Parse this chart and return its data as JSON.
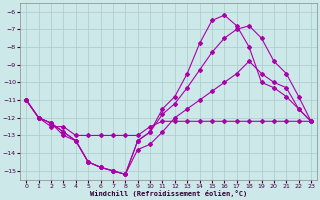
{
  "xlabel": "Windchill (Refroidissement éolien,°C)",
  "background_color": "#cce8e8",
  "grid_color": "#aacccc",
  "line_color": "#aa00aa",
  "xlim_min": -0.5,
  "xlim_max": 23.5,
  "ylim_min": -15.5,
  "ylim_max": -5.5,
  "yticks": [
    -15,
    -14,
    -13,
    -12,
    -11,
    -10,
    -9,
    -8,
    -7,
    -6
  ],
  "xticks": [
    0,
    1,
    2,
    3,
    4,
    5,
    6,
    7,
    8,
    9,
    10,
    11,
    12,
    13,
    14,
    15,
    16,
    17,
    18,
    19,
    20,
    21,
    22,
    23
  ],
  "series": [
    {
      "x": [
        0,
        1,
        2,
        3,
        4,
        5,
        6,
        7,
        8,
        9,
        10,
        11,
        12,
        13,
        14,
        15,
        16,
        17,
        18,
        19,
        20,
        21,
        22,
        23
      ],
      "y": [
        -11.0,
        -12.0,
        -12.5,
        -12.5,
        -13.0,
        -13.0,
        -13.0,
        -13.0,
        -13.0,
        -13.0,
        -12.5,
        -12.2,
        -12.2,
        -12.2,
        -12.2,
        -12.2,
        -12.2,
        -12.2,
        -12.2,
        -12.2,
        -12.2,
        -12.2,
        -12.2,
        -12.2
      ]
    },
    {
      "x": [
        0,
        1,
        2,
        3,
        4,
        5,
        6,
        7,
        8,
        9,
        10,
        11,
        12,
        13,
        14,
        15,
        16,
        17,
        18,
        19,
        20,
        21,
        22,
        23
      ],
      "y": [
        -11.0,
        -12.0,
        -12.3,
        -13.0,
        -13.3,
        -14.5,
        -14.8,
        -15.0,
        -15.2,
        -13.8,
        -13.5,
        -12.8,
        -12.0,
        -11.5,
        -11.0,
        -10.5,
        -10.0,
        -9.5,
        -8.8,
        -9.5,
        -10.0,
        -10.3,
        -11.5,
        -12.2
      ]
    },
    {
      "x": [
        0,
        1,
        2,
        3,
        4,
        5,
        6,
        7,
        8,
        9,
        10,
        11,
        12,
        13,
        14,
        15,
        16,
        17,
        18,
        19,
        20,
        21,
        22,
        23
      ],
      "y": [
        -11.0,
        -12.0,
        -12.3,
        -12.8,
        -13.3,
        -14.5,
        -14.8,
        -15.0,
        -15.2,
        -13.3,
        -12.8,
        -11.8,
        -11.2,
        -10.3,
        -9.3,
        -8.3,
        -7.5,
        -7.0,
        -6.8,
        -7.5,
        -8.8,
        -9.5,
        -10.8,
        -12.2
      ]
    },
    {
      "x": [
        0,
        1,
        2,
        3,
        4,
        5,
        6,
        7,
        8,
        9,
        10,
        11,
        12,
        13,
        14,
        15,
        16,
        17,
        18,
        19,
        20,
        21,
        22,
        23
      ],
      "y": [
        -11.0,
        -12.0,
        -12.3,
        -12.8,
        -13.3,
        -14.5,
        -14.8,
        -15.0,
        -15.2,
        -13.3,
        -12.8,
        -11.5,
        -10.8,
        -9.5,
        -7.8,
        -6.5,
        -6.2,
        -6.8,
        -8.0,
        -10.0,
        -10.3,
        -10.8,
        -11.5,
        -12.2
      ]
    }
  ]
}
